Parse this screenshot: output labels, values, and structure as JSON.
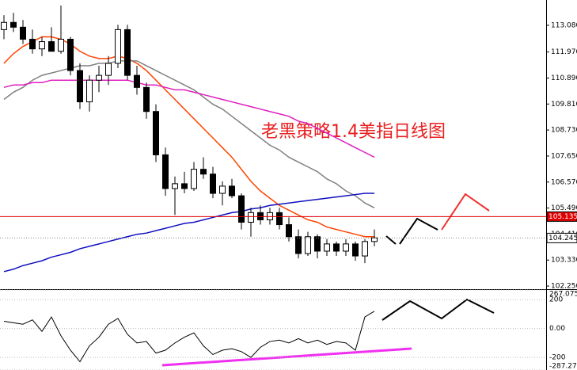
{
  "chart_data": [
    {
      "type": "candlestick",
      "annotation": "老黑策略1.4美指日线图",
      "ylim": [
        102.12,
        114.13
      ],
      "yticks": [
        {
          "value": 113.08,
          "label": "113.080"
        },
        {
          "value": 111.97,
          "label": "111.970"
        },
        {
          "value": 110.89,
          "label": "110.890"
        },
        {
          "value": 109.81,
          "label": "109.810"
        },
        {
          "value": 108.73,
          "label": "108.730"
        },
        {
          "value": 107.65,
          "label": "107.650"
        },
        {
          "value": 106.57,
          "label": "106.570"
        },
        {
          "value": 105.49,
          "label": "105.490"
        },
        {
          "value": 104.41,
          "label": "104.410"
        },
        {
          "value": 103.33,
          "label": "103.330"
        },
        {
          "value": 102.25,
          "label": "102.250"
        }
      ],
      "price_lines": [
        {
          "value": 105.135,
          "color": "#e00000"
        },
        {
          "value": 104.245,
          "color": "#888888"
        }
      ],
      "open": [
        112.9,
        113.2,
        113.0,
        112.5,
        112.1,
        112.4,
        112.0,
        112.5,
        111.2,
        109.9,
        110.8,
        111.0,
        111.5,
        112.9,
        111.0,
        110.5,
        109.5,
        107.7,
        106.3,
        106.5,
        106.3,
        107.1,
        106.9,
        106.1,
        106.4,
        106.0,
        104.9,
        105.3,
        105.0,
        105.3,
        104.8,
        104.3,
        103.6,
        104.3,
        103.7,
        104.0,
        103.7,
        104.0,
        103.5,
        104.1
      ],
      "high": [
        113.5,
        113.6,
        113.3,
        112.9,
        112.6,
        113.0,
        113.9,
        112.6,
        111.5,
        111.0,
        111.4,
        111.8,
        113.1,
        113.1,
        111.4,
        110.7,
        109.8,
        108.0,
        106.8,
        107.0,
        107.4,
        107.6,
        107.2,
        106.6,
        106.7,
        106.1,
        105.5,
        105.6,
        105.5,
        105.5,
        105.1,
        104.6,
        104.5,
        104.4,
        104.2,
        104.1,
        104.2,
        104.1,
        104.2,
        104.6
      ],
      "low": [
        112.5,
        112.8,
        112.3,
        111.9,
        111.8,
        112.0,
        111.9,
        111.0,
        109.6,
        109.5,
        110.3,
        110.6,
        111.3,
        110.8,
        110.2,
        109.2,
        107.4,
        106.0,
        105.2,
        106.1,
        106.2,
        106.7,
        105.9,
        105.6,
        105.9,
        104.6,
        104.3,
        104.8,
        104.8,
        104.6,
        104.1,
        103.4,
        103.5,
        103.4,
        103.5,
        103.5,
        103.5,
        103.3,
        103.2,
        103.9
      ],
      "close": [
        113.2,
        113.0,
        112.5,
        112.1,
        112.4,
        112.0,
        112.5,
        111.2,
        109.9,
        110.8,
        111.0,
        111.5,
        112.9,
        111.0,
        110.5,
        109.5,
        107.7,
        106.3,
        106.5,
        106.3,
        107.1,
        106.9,
        106.1,
        106.4,
        106.0,
        104.9,
        105.3,
        105.0,
        105.3,
        104.8,
        104.3,
        103.6,
        104.3,
        103.7,
        104.0,
        103.7,
        104.0,
        103.5,
        104.1,
        104.25
      ],
      "series": [
        {
          "color": "#ff4500",
          "values": [
            111.5,
            111.9,
            112.2,
            112.4,
            112.6,
            112.6,
            112.5,
            112.3,
            112.0,
            111.8,
            111.7,
            111.7,
            111.8,
            111.7,
            111.5,
            111.2,
            110.8,
            110.4,
            110.0,
            109.6,
            109.2,
            108.8,
            108.4,
            108.0,
            107.6,
            107.1,
            106.6,
            106.2,
            105.9,
            105.6,
            105.4,
            105.2,
            105.0,
            104.9,
            104.7,
            104.6,
            104.5,
            104.4,
            104.3,
            104.3
          ]
        },
        {
          "color": "#808080",
          "values": [
            110.0,
            110.3,
            110.5,
            110.8,
            111.0,
            111.1,
            111.2,
            111.3,
            111.4,
            111.4,
            111.5,
            111.5,
            111.6,
            111.6,
            111.6,
            111.4,
            111.2,
            111.0,
            110.8,
            110.6,
            110.4,
            110.1,
            109.8,
            109.6,
            109.3,
            109.0,
            108.7,
            108.4,
            108.1,
            107.9,
            107.6,
            107.4,
            107.2,
            107.0,
            106.7,
            106.5,
            106.2,
            106.0,
            105.7,
            105.5
          ]
        },
        {
          "color": "#e020c0",
          "values": [
            110.5,
            110.6,
            110.6,
            110.7,
            110.7,
            110.8,
            110.8,
            110.8,
            110.8,
            110.8,
            110.8,
            110.8,
            110.8,
            110.8,
            110.7,
            110.6,
            110.6,
            110.5,
            110.4,
            110.4,
            110.3,
            110.2,
            110.1,
            110.0,
            109.9,
            109.8,
            109.7,
            109.6,
            109.5,
            109.4,
            109.3,
            109.1,
            109.0,
            108.8,
            108.6,
            108.4,
            108.2,
            108.0,
            107.8,
            107.6
          ]
        },
        {
          "color": "#1010c0",
          "values": [
            102.85,
            102.95,
            103.1,
            103.2,
            103.3,
            103.45,
            103.55,
            103.65,
            103.8,
            103.9,
            104.0,
            104.1,
            104.2,
            104.3,
            104.4,
            104.45,
            104.55,
            104.65,
            104.75,
            104.85,
            104.9,
            105.0,
            105.1,
            105.2,
            105.3,
            105.35,
            105.45,
            105.5,
            105.6,
            105.65,
            105.7,
            105.75,
            105.8,
            105.85,
            105.9,
            105.95,
            106.0,
            106.05,
            106.1,
            106.1
          ]
        }
      ]
    },
    {
      "type": "line",
      "color": "#000000",
      "ylim": [
        -287.274,
        267.0751
      ],
      "yticks": [
        {
          "value": 267.0751,
          "label": "267.0751"
        },
        200,
        {
          "value": 0,
          "label": "0.00"
        },
        -200,
        -287.274
      ],
      "values": [
        50,
        40,
        30,
        60,
        -20,
        80,
        -50,
        -150,
        -230,
        -120,
        -60,
        30,
        70,
        -40,
        -100,
        -90,
        -170,
        -150,
        -100,
        -60,
        -30,
        -120,
        -180,
        -150,
        -140,
        -160,
        -200,
        -130,
        -90,
        -80,
        -100,
        -70,
        -100,
        -80,
        -110,
        -90,
        -100,
        -150,
        80,
        120
      ]
    }
  ]
}
